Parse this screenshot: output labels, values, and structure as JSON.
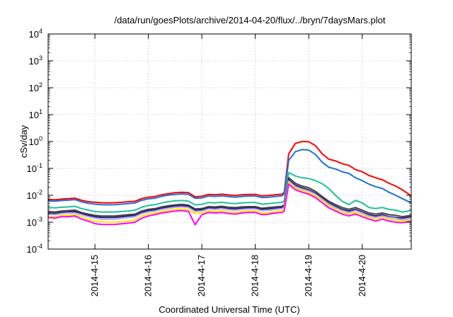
{
  "chart_data": {
    "type": "line",
    "title": "/data/run/goesPlots/archive/2014-04-20/flux/../bryn/7daysMars.plot",
    "xlabel": "Coordinated Universal Time (UTC)",
    "ylabel": "cSv/day",
    "yscale": "log",
    "ylim": [
      0.0001,
      10000
    ],
    "y_ticks": [
      {
        "base": "10",
        "exp": "-4",
        "value": 0.0001
      },
      {
        "base": "10",
        "exp": "-3",
        "value": 0.001
      },
      {
        "base": "10",
        "exp": "-2",
        "value": 0.01
      },
      {
        "base": "10",
        "exp": "-1",
        "value": 0.1
      },
      {
        "base": "10",
        "exp": "0",
        "value": 1
      },
      {
        "base": "10",
        "exp": "1",
        "value": 10
      },
      {
        "base": "10",
        "exp": "2",
        "value": 100
      },
      {
        "base": "10",
        "exp": "3",
        "value": 1000
      },
      {
        "base": "10",
        "exp": "4",
        "value": 10000
      }
    ],
    "xlim": [
      "2014-04-14 03:00",
      "2014-04-20 22:00"
    ],
    "x_ticks": [
      {
        "label": "2014-4-15",
        "value": "2014-04-15"
      },
      {
        "label": "2014-4-16",
        "value": "2014-04-16"
      },
      {
        "label": "2014-4-17",
        "value": "2014-04-17"
      },
      {
        "label": "2014-4-18",
        "value": "2014-04-18"
      },
      {
        "label": "2014-4-19",
        "value": "2014-04-19"
      },
      {
        "label": "2014-4-20",
        "value": "2014-04-20"
      }
    ],
    "grid": true,
    "legend": "none",
    "x": [
      "2014-04-14 03:00",
      "2014-04-14 06:00",
      "2014-04-14 09:00",
      "2014-04-14 12:00",
      "2014-04-14 15:00",
      "2014-04-14 18:00",
      "2014-04-14 21:00",
      "2014-04-15 00:00",
      "2014-04-15 03:00",
      "2014-04-15 06:00",
      "2014-04-15 09:00",
      "2014-04-15 12:00",
      "2014-04-15 15:00",
      "2014-04-15 18:00",
      "2014-04-15 21:00",
      "2014-04-16 00:00",
      "2014-04-16 03:00",
      "2014-04-16 06:00",
      "2014-04-16 09:00",
      "2014-04-16 12:00",
      "2014-04-16 15:00",
      "2014-04-16 18:00",
      "2014-04-16 21:00",
      "2014-04-17 00:00",
      "2014-04-17 03:00",
      "2014-04-17 06:00",
      "2014-04-17 09:00",
      "2014-04-17 12:00",
      "2014-04-17 15:00",
      "2014-04-17 18:00",
      "2014-04-17 21:00",
      "2014-04-18 00:00",
      "2014-04-18 03:00",
      "2014-04-18 06:00",
      "2014-04-18 09:00",
      "2014-04-18 12:00",
      "2014-04-18 13:00",
      "2014-04-18 15:00",
      "2014-04-18 18:00",
      "2014-04-18 21:00",
      "2014-04-19 00:00",
      "2014-04-19 03:00",
      "2014-04-19 06:00",
      "2014-04-19 09:00",
      "2014-04-19 12:00",
      "2014-04-19 15:00",
      "2014-04-19 18:00",
      "2014-04-19 21:00",
      "2014-04-20 00:00",
      "2014-04-20 03:00",
      "2014-04-20 06:00",
      "2014-04-20 09:00",
      "2014-04-20 12:00",
      "2014-04-20 15:00",
      "2014-04-20 18:00",
      "2014-04-20 22:00"
    ],
    "series": [
      {
        "color": "#ff0000",
        "values": [
          0.007,
          0.0068,
          0.0072,
          0.0075,
          0.0078,
          0.0065,
          0.0058,
          0.0055,
          0.0053,
          0.0052,
          0.0053,
          0.0055,
          0.0058,
          0.006,
          0.0075,
          0.0085,
          0.009,
          0.0105,
          0.0115,
          0.0125,
          0.013,
          0.0125,
          0.0088,
          0.0092,
          0.0108,
          0.0105,
          0.011,
          0.0103,
          0.0098,
          0.0105,
          0.0108,
          0.0108,
          0.0095,
          0.0098,
          0.0105,
          0.011,
          0.013,
          0.35,
          0.85,
          1.0,
          0.98,
          0.7,
          0.35,
          0.22,
          0.19,
          0.15,
          0.13,
          0.09,
          0.075,
          0.055,
          0.045,
          0.038,
          0.028,
          0.022,
          0.016,
          0.0095
        ]
      },
      {
        "color": "#1f6fe0",
        "values": [
          0.0062,
          0.006,
          0.0064,
          0.0066,
          0.0069,
          0.0057,
          0.005,
          0.0047,
          0.0045,
          0.0044,
          0.0045,
          0.0047,
          0.0049,
          0.0052,
          0.0065,
          0.0074,
          0.0078,
          0.0092,
          0.0101,
          0.0108,
          0.0113,
          0.0108,
          0.0077,
          0.008,
          0.0094,
          0.0091,
          0.0096,
          0.009,
          0.0085,
          0.0091,
          0.0094,
          0.0094,
          0.0083,
          0.0085,
          0.0091,
          0.0096,
          0.0112,
          0.2,
          0.42,
          0.5,
          0.48,
          0.33,
          0.17,
          0.11,
          0.095,
          0.075,
          0.065,
          0.045,
          0.035,
          0.026,
          0.021,
          0.018,
          0.013,
          0.01,
          0.0075,
          0.0052
        ]
      },
      {
        "color": "#20c09a",
        "values": [
          0.0035,
          0.0034,
          0.0036,
          0.0037,
          0.0039,
          0.0032,
          0.0028,
          0.0025,
          0.0024,
          0.0024,
          0.0024,
          0.0025,
          0.0026,
          0.0028,
          0.0036,
          0.0042,
          0.0045,
          0.0052,
          0.0058,
          0.0062,
          0.0064,
          0.0061,
          0.0044,
          0.0046,
          0.0054,
          0.0052,
          0.0055,
          0.0051,
          0.0049,
          0.0052,
          0.0054,
          0.0054,
          0.0047,
          0.0049,
          0.0052,
          0.0055,
          0.0062,
          0.07,
          0.052,
          0.045,
          0.042,
          0.035,
          0.027,
          0.018,
          0.01,
          0.006,
          0.0045,
          0.0065,
          0.0052,
          0.0035,
          0.0032,
          0.0035,
          0.003,
          0.0028,
          0.0024,
          0.0027
        ]
      },
      {
        "color": "#444444",
        "values": [
          0.0025,
          0.0024,
          0.0026,
          0.0027,
          0.0028,
          0.0023,
          0.002,
          0.0018,
          0.0017,
          0.0017,
          0.0017,
          0.0018,
          0.0019,
          0.002,
          0.0026,
          0.003,
          0.0032,
          0.0037,
          0.0041,
          0.0044,
          0.0046,
          0.0043,
          0.0031,
          0.0032,
          0.0038,
          0.0037,
          0.0039,
          0.0036,
          0.0035,
          0.0037,
          0.0038,
          0.0038,
          0.0033,
          0.0035,
          0.0037,
          0.0039,
          0.0044,
          0.045,
          0.028,
          0.022,
          0.019,
          0.014,
          0.009,
          0.006,
          0.0045,
          0.0035,
          0.003,
          0.0035,
          0.0028,
          0.0022,
          0.002,
          0.0022,
          0.0019,
          0.0018,
          0.0016,
          0.0018
        ]
      },
      {
        "color": "#23236e",
        "values": [
          0.0022,
          0.0021,
          0.0023,
          0.0024,
          0.0025,
          0.0021,
          0.0018,
          0.0016,
          0.0015,
          0.0015,
          0.0015,
          0.0016,
          0.0017,
          0.0018,
          0.0023,
          0.0027,
          0.0029,
          0.0033,
          0.0037,
          0.004,
          0.0041,
          0.0039,
          0.0028,
          0.0029,
          0.0034,
          0.0033,
          0.0035,
          0.0032,
          0.0031,
          0.0033,
          0.0034,
          0.0034,
          0.003,
          0.0031,
          0.0033,
          0.0035,
          0.004,
          0.038,
          0.024,
          0.019,
          0.016,
          0.012,
          0.008,
          0.0052,
          0.0039,
          0.003,
          0.0026,
          0.003,
          0.0024,
          0.0019,
          0.0017,
          0.0019,
          0.0016,
          0.0015,
          0.0014,
          0.0016
        ]
      },
      {
        "color": "#b8a0ff",
        "values": [
          0.002,
          0.0019,
          0.0021,
          0.0022,
          0.0022,
          0.0019,
          0.0016,
          0.0014,
          0.0013,
          0.0013,
          0.0013,
          0.0014,
          0.0015,
          0.0016,
          0.0021,
          0.0024,
          0.0026,
          0.003,
          0.0033,
          0.0036,
          0.0037,
          0.0035,
          0.0025,
          0.0026,
          0.0031,
          0.003,
          0.0032,
          0.0029,
          0.0028,
          0.003,
          0.0031,
          0.0031,
          0.0027,
          0.0028,
          0.003,
          0.0032,
          0.0036,
          0.034,
          0.021,
          0.017,
          0.0145,
          0.011,
          0.0072,
          0.0047,
          0.0035,
          0.0027,
          0.0023,
          0.0027,
          0.0022,
          0.0017,
          0.0015,
          0.0017,
          0.0015,
          0.0014,
          0.0012,
          0.0014
        ]
      },
      {
        "color": "#ffea00",
        "values": [
          0.0017,
          0.0016,
          0.0018,
          0.0018,
          0.0019,
          0.0016,
          0.0013,
          0.0011,
          0.00105,
          0.001,
          0.001,
          0.00105,
          0.0011,
          0.0012,
          0.0017,
          0.002,
          0.0022,
          0.0025,
          0.0028,
          0.003,
          0.0031,
          0.0029,
          0.0021,
          0.0022,
          0.0026,
          0.0025,
          0.0027,
          0.0024,
          0.0023,
          0.0025,
          0.0026,
          0.0026,
          0.0022,
          0.0023,
          0.0025,
          0.0027,
          0.003,
          0.03,
          0.018,
          0.015,
          0.0125,
          0.0095,
          0.0062,
          0.004,
          0.003,
          0.0023,
          0.002,
          0.0023,
          0.0019,
          0.0015,
          0.0013,
          0.0015,
          0.0013,
          0.0012,
          0.0011,
          0.0012
        ]
      },
      {
        "color": "#ff00ff",
        "values": [
          0.0015,
          0.0014,
          0.0016,
          0.0016,
          0.0017,
          0.0013,
          0.0011,
          0.00088,
          0.00083,
          0.00082,
          0.00083,
          0.00087,
          0.00092,
          0.001,
          0.0014,
          0.0017,
          0.0019,
          0.0022,
          0.0024,
          0.0026,
          0.0027,
          0.0025,
          0.0008,
          0.0019,
          0.0023,
          0.0022,
          0.0023,
          0.0021,
          0.002,
          0.0022,
          0.0023,
          0.0023,
          0.0019,
          0.002,
          0.0022,
          0.0023,
          0.0026,
          0.026,
          0.016,
          0.013,
          0.011,
          0.0082,
          0.0053,
          0.0034,
          0.0026,
          0.002,
          0.0017,
          0.002,
          0.0016,
          0.0013,
          0.0011,
          0.0013,
          0.0011,
          0.001,
          0.00095,
          0.0011
        ]
      }
    ]
  }
}
